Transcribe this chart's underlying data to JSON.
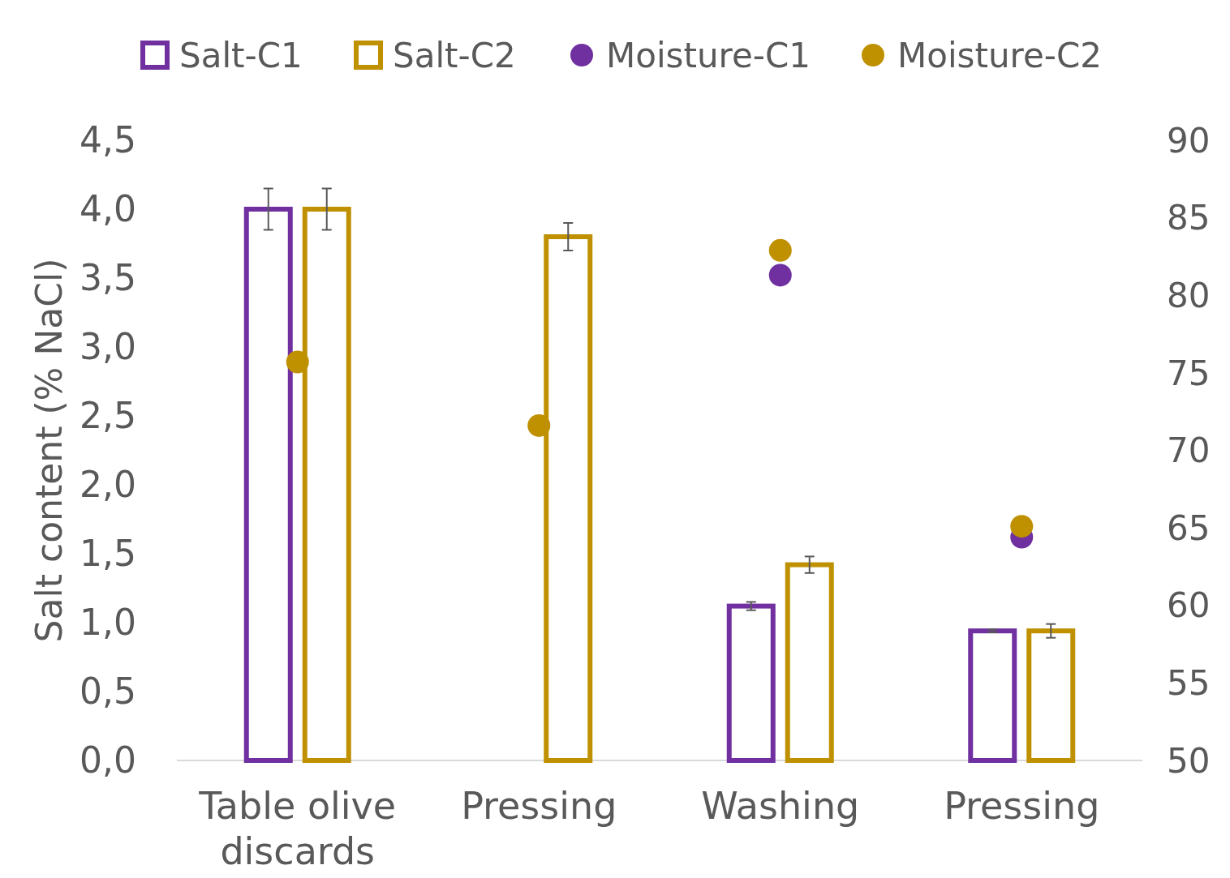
{
  "chart_data": {
    "type": "bar",
    "ylabel": "Salt content (% NaCl)",
    "categories": [
      "Table olive discards",
      "Pressing",
      "Washing",
      "Pressing"
    ],
    "series": [
      {
        "name": "Salt-C1",
        "color": "#7030a0",
        "values": [
          4.0,
          null,
          1.12,
          0.94
        ],
        "errors": [
          0.15,
          null,
          0.03,
          0.01
        ]
      },
      {
        "name": "Salt-C2",
        "color": "#bf9000",
        "values": [
          4.0,
          3.8,
          1.42,
          0.94
        ],
        "errors": [
          0.15,
          0.1,
          0.06,
          0.05
        ]
      },
      {
        "name": "Moisture-C1",
        "type": "scatter",
        "axis": "y2",
        "marker": "circle",
        "color": "#7030a0",
        "values": [
          null,
          null,
          81.3,
          64.4
        ]
      },
      {
        "name": "Moisture-C2",
        "type": "scatter",
        "axis": "y2",
        "marker": "circle",
        "color": "#bf9000",
        "values": [
          75.7,
          71.6,
          82.9,
          65.1
        ]
      }
    ],
    "ylim": [
      0,
      4.5
    ],
    "yticks": [
      {
        "value": 0,
        "label": "0,0"
      },
      {
        "value": 0.5,
        "label": "0,5"
      },
      {
        "value": 1,
        "label": "1,0"
      },
      {
        "value": 1.5,
        "label": "1,5"
      },
      {
        "value": 2,
        "label": "2,0"
      },
      {
        "value": 2.5,
        "label": "2,5"
      },
      {
        "value": 3,
        "label": "3,0"
      },
      {
        "value": 3.5,
        "label": "3,5"
      },
      {
        "value": 4,
        "label": "4,0"
      },
      {
        "value": 4.5,
        "label": "4,5"
      }
    ],
    "y2lim": [
      50,
      90
    ],
    "y2ticks": [
      50,
      55,
      60,
      65,
      70,
      75,
      80,
      85,
      90
    ],
    "grid": false,
    "legend": "top"
  }
}
